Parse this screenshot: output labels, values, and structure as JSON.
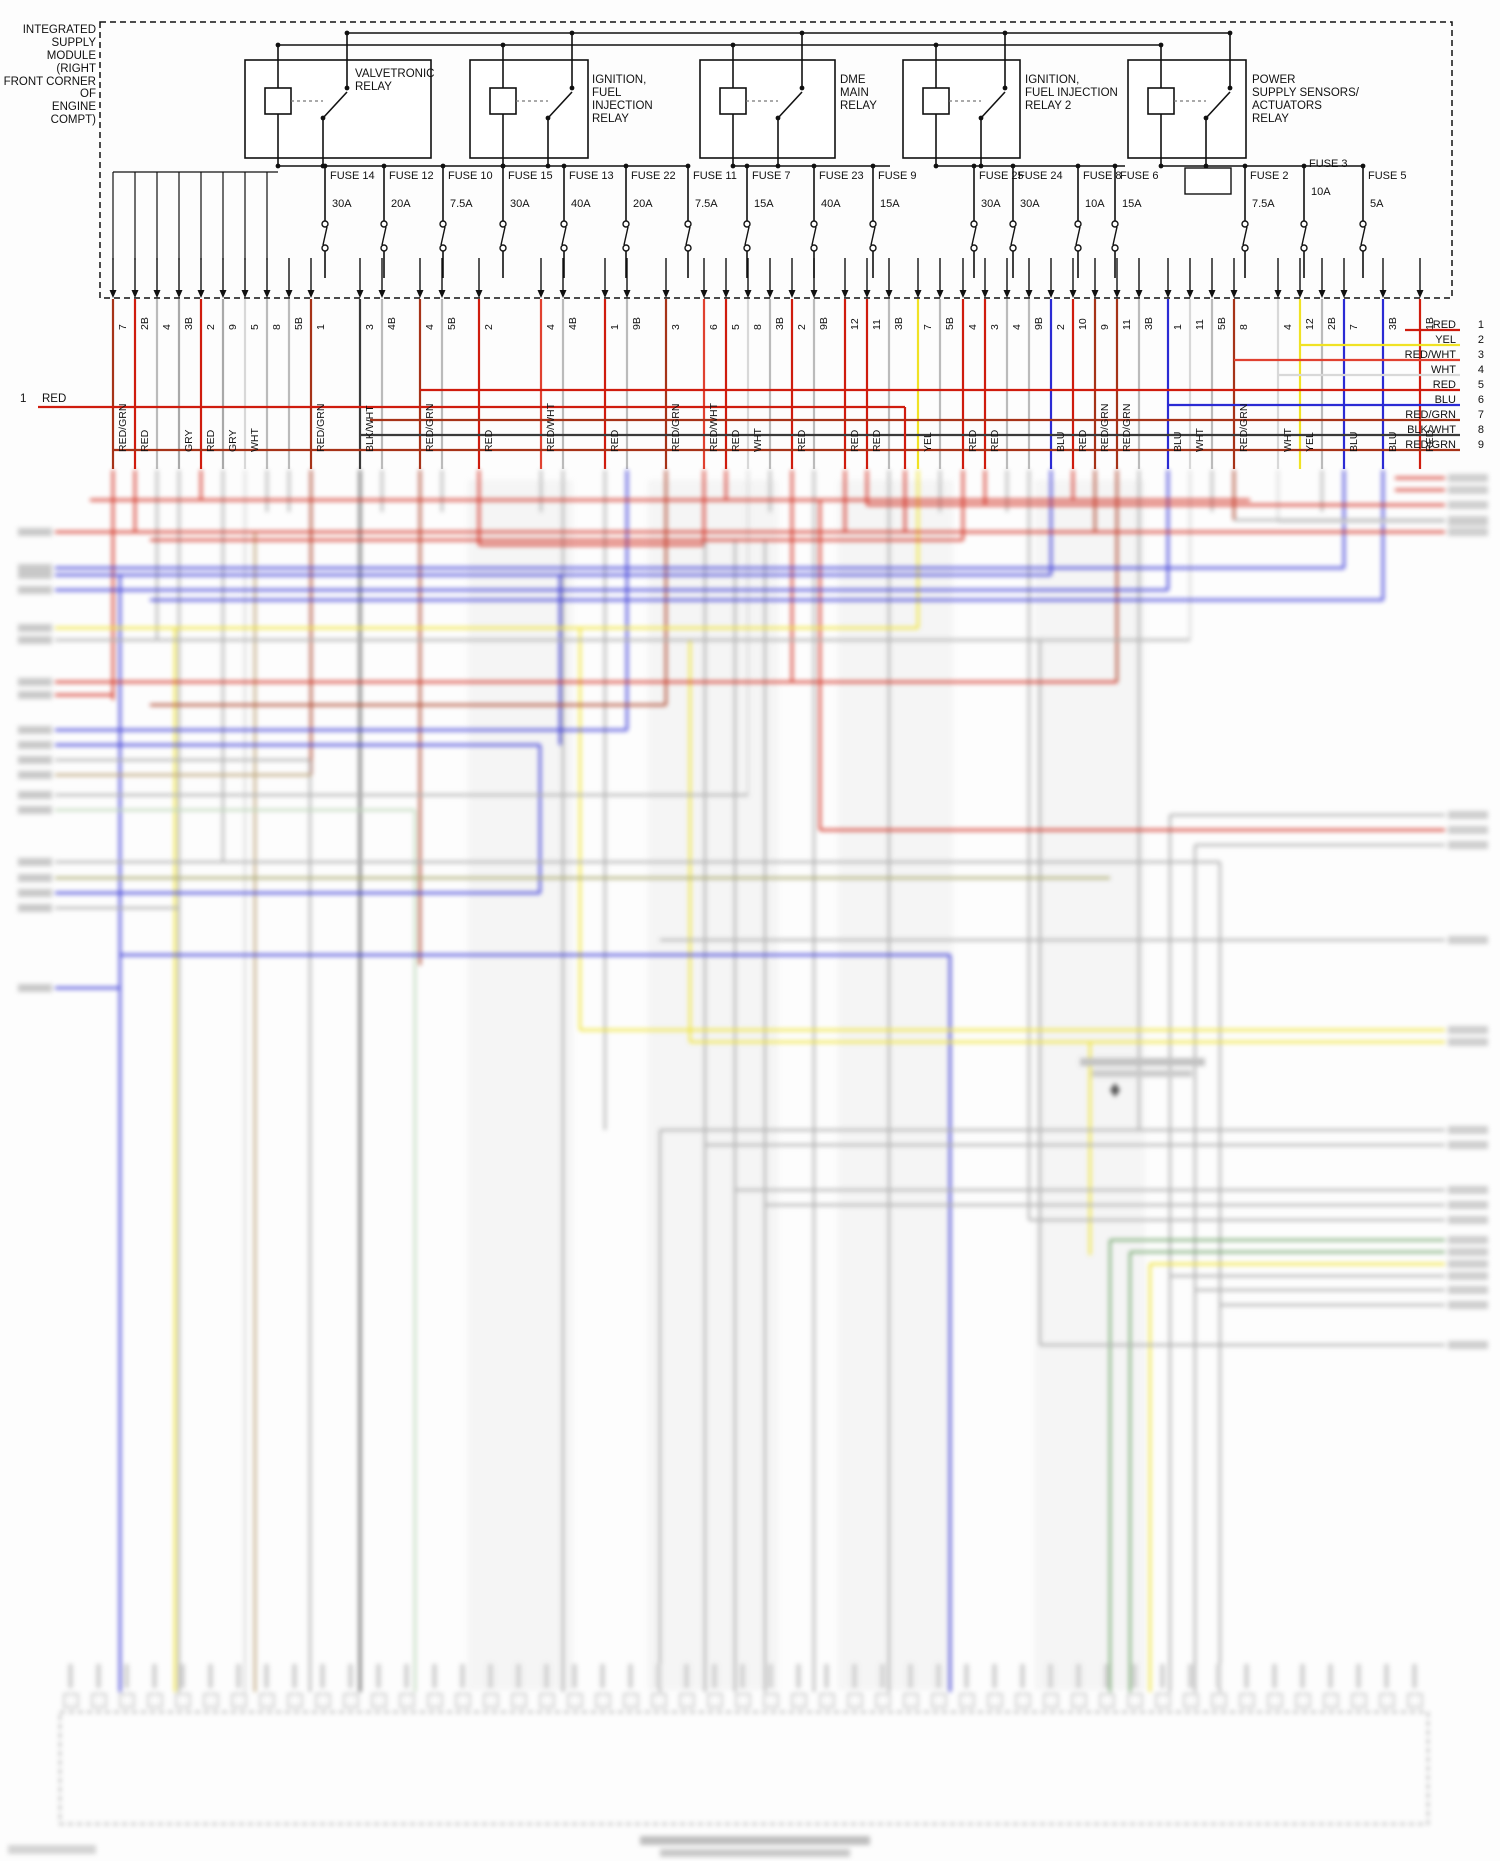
{
  "module": {
    "label": "INTEGRATED\nSUPPLY\nMODULE\n(RIGHT\nFRONT CORNER\nOF\nENGINE\nCOMPT)"
  },
  "relays": [
    {
      "name": "VALVETRONIC\nRELAY"
    },
    {
      "name": "IGNITION,\nFUEL\nINJECTION\nRELAY"
    },
    {
      "name": "DME\nMAIN\nRELAY"
    },
    {
      "name": "IGNITION,\nFUEL INJECTION\nRELAY 2"
    },
    {
      "name": "POWER\nSUPPLY SENSORS/\nACTUATORS\nRELAY"
    }
  ],
  "fuses": [
    {
      "name": "FUSE 14",
      "rating": "30A"
    },
    {
      "name": "FUSE 12",
      "rating": "20A"
    },
    {
      "name": "FUSE 10",
      "rating": "7.5A"
    },
    {
      "name": "FUSE 15",
      "rating": "30A"
    },
    {
      "name": "FUSE 13",
      "rating": "40A"
    },
    {
      "name": "FUSE 22",
      "rating": "20A"
    },
    {
      "name": "FUSE 11",
      "rating": "7.5A"
    },
    {
      "name": "FUSE 7",
      "rating": "15A"
    },
    {
      "name": "FUSE 23",
      "rating": "40A"
    },
    {
      "name": "FUSE 9",
      "rating": "15A"
    },
    {
      "name": "FUSE 25",
      "rating": "30A"
    },
    {
      "name": "FUSE 24",
      "rating": "30A"
    },
    {
      "name": "FUSE 8",
      "rating": "10A"
    },
    {
      "name": "FUSE 6",
      "rating": "15A"
    },
    {
      "name": "FUSE 2",
      "rating": "7.5A"
    },
    {
      "name": "FUSE 3",
      "rating": "10A"
    },
    {
      "name": "FUSE 5",
      "rating": "5A"
    }
  ],
  "connector_pins": [
    {
      "pin": "7",
      "color": "RED/GRN"
    },
    {
      "pin": "2B",
      "color": "RED"
    },
    {
      "pin": "4",
      "color": ""
    },
    {
      "pin": "3B",
      "color": "GRY"
    },
    {
      "pin": "2",
      "color": "RED"
    },
    {
      "pin": "9",
      "color": "GRY"
    },
    {
      "pin": "5",
      "color": "WHT"
    },
    {
      "pin": "8",
      "color": ""
    },
    {
      "pin": "5B",
      "color": ""
    },
    {
      "pin": "1",
      "color": "RED/GRN"
    },
    {
      "pin": "3",
      "color": "BLK/WHT"
    },
    {
      "pin": "4B",
      "color": ""
    },
    {
      "pin": "4",
      "color": "RED/GRN"
    },
    {
      "pin": "5B",
      "color": ""
    },
    {
      "pin": "2",
      "color": "RED"
    },
    {
      "pin": "4",
      "color": "RED/WHT"
    },
    {
      "pin": "4B",
      "color": ""
    },
    {
      "pin": "1",
      "color": "RED"
    },
    {
      "pin": "9B",
      "color": ""
    },
    {
      "pin": "3",
      "color": "RED/GRN"
    },
    {
      "pin": "6",
      "color": "RED/WHT"
    },
    {
      "pin": "5",
      "color": "RED"
    },
    {
      "pin": "8",
      "color": "WHT"
    },
    {
      "pin": "3B",
      "color": ""
    },
    {
      "pin": "2",
      "color": "RED"
    },
    {
      "pin": "9B",
      "color": ""
    },
    {
      "pin": "12",
      "color": "RED"
    },
    {
      "pin": "11",
      "color": "RED"
    },
    {
      "pin": "3B",
      "color": ""
    },
    {
      "pin": "7",
      "color": "YEL"
    },
    {
      "pin": "5B",
      "color": ""
    },
    {
      "pin": "4",
      "color": "RED"
    },
    {
      "pin": "3",
      "color": "RED"
    },
    {
      "pin": "4",
      "color": ""
    },
    {
      "pin": "9B",
      "color": ""
    },
    {
      "pin": "2",
      "color": "BLU"
    },
    {
      "pin": "10",
      "color": "RED"
    },
    {
      "pin": "9",
      "color": "RED/GRN"
    },
    {
      "pin": "11",
      "color": "RED/GRN"
    },
    {
      "pin": "3B",
      "color": ""
    },
    {
      "pin": "1",
      "color": "BLU"
    },
    {
      "pin": "11",
      "color": "WHT"
    },
    {
      "pin": "5B",
      "color": ""
    },
    {
      "pin": "8",
      "color": "RED/GRN"
    },
    {
      "pin": "4",
      "color": "WHT"
    },
    {
      "pin": "12",
      "color": "YEL"
    },
    {
      "pin": "2B",
      "color": ""
    },
    {
      "pin": "7",
      "color": "BLU"
    },
    {
      "pin": "3B",
      "color": "BLU"
    },
    {
      "pin": "1B",
      "color": "RED"
    }
  ],
  "harness_right": [
    {
      "num": "1",
      "color": "RED"
    },
    {
      "num": "2",
      "color": "YEL"
    },
    {
      "num": "3",
      "color": "RED/WHT"
    },
    {
      "num": "4",
      "color": "WHT"
    },
    {
      "num": "5",
      "color": "RED"
    },
    {
      "num": "6",
      "color": "BLU"
    },
    {
      "num": "7",
      "color": "RED/GRN"
    },
    {
      "num": "8",
      "color": "BLK/WHT"
    },
    {
      "num": "9",
      "color": "RED/GRN"
    }
  ],
  "harness_left": {
    "num": "1",
    "color": "RED"
  },
  "palette": {
    "red": "#cf1c0e",
    "red_grn": "#a63318",
    "red_wht": "#e04130",
    "gry": "#a9a9a9",
    "wht": "#d8d8d8",
    "yel": "#f0e224",
    "blu": "#2b2bd4",
    "blk_wht": "#3a3a3a",
    "tan": "#b59a6a",
    "grn": "#6aa063",
    "pale_grn": "#b9d4b4",
    "olive": "#a0a060",
    "schematic_line": "#111111"
  }
}
